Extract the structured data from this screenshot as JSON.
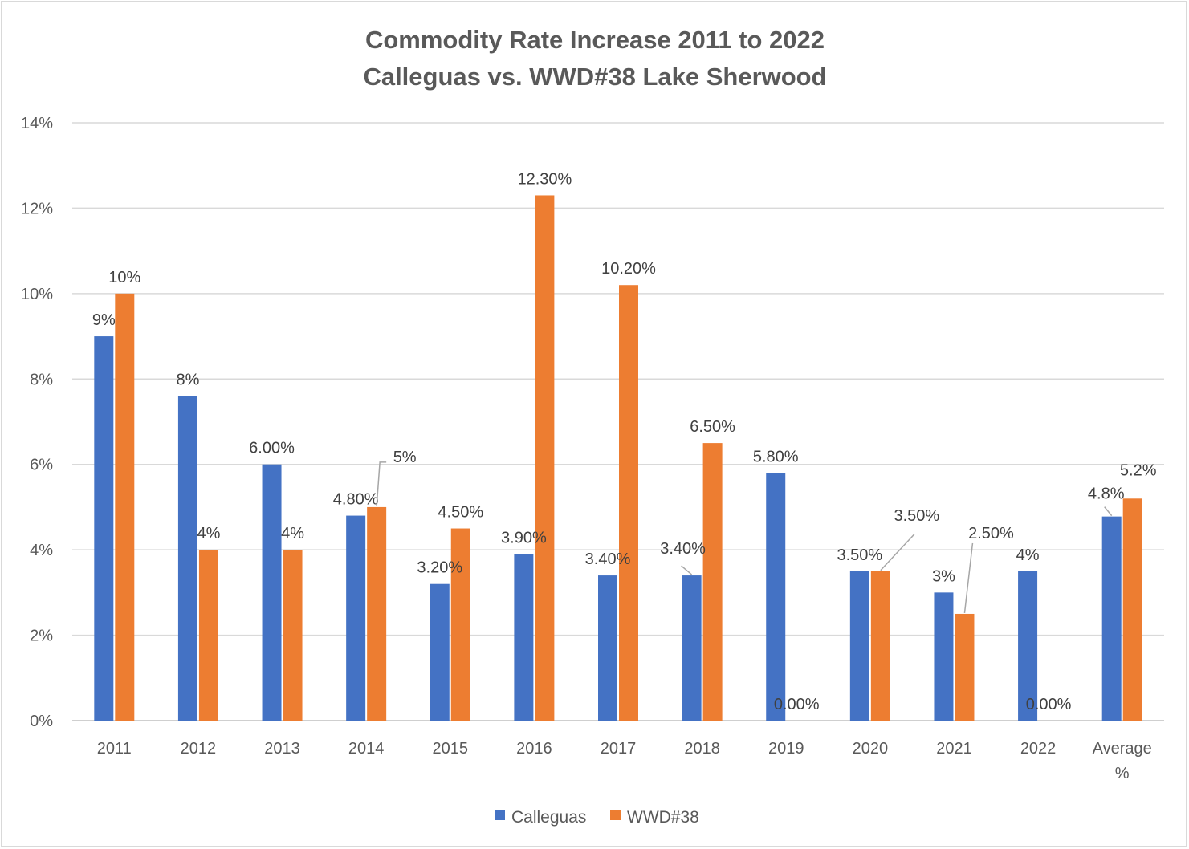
{
  "chart_data": {
    "type": "bar",
    "title": "Commodity Rate Increase 2011 to 2022",
    "subtitle": "Calleguas vs. WWD#38 Lake Sherwood",
    "categories": [
      "2011",
      "2012",
      "2013",
      "2014",
      "2015",
      "2016",
      "2017",
      "2018",
      "2019",
      "2020",
      "2021",
      "2022",
      "Average %"
    ],
    "series": [
      {
        "name": "Calleguas",
        "color": "#4472c4",
        "values": [
          9.0,
          7.6,
          6.0,
          4.8,
          3.2,
          3.9,
          3.4,
          3.4,
          5.8,
          3.5,
          3.0,
          3.5,
          4.78
        ],
        "labels": [
          "9%",
          "8%",
          "6.00%",
          "4.80%",
          "3.20%",
          "3.90%",
          "3.40%",
          "3.40%",
          "5.80%",
          "3.50%",
          "3%",
          "4%",
          "4.8%"
        ]
      },
      {
        "name": "WWD#38",
        "color": "#ed7d31",
        "values": [
          10.0,
          4.0,
          4.0,
          5.0,
          4.5,
          12.3,
          10.2,
          6.5,
          0.0,
          3.5,
          2.5,
          0.0,
          5.2
        ],
        "labels": [
          "10%",
          "4%",
          "4%",
          "5%",
          "4.50%",
          "12.30%",
          "10.20%",
          "6.50%",
          "0.00%",
          "3.50%",
          "2.50%",
          "0.00%",
          "5.2%"
        ]
      }
    ],
    "ylim": [
      0,
      14
    ],
    "yticks": [
      "0%",
      "2%",
      "4%",
      "6%",
      "8%",
      "10%",
      "12%",
      "14%"
    ],
    "xlabel": "",
    "ylabel": "",
    "grid": true,
    "legend_position": "bottom"
  }
}
